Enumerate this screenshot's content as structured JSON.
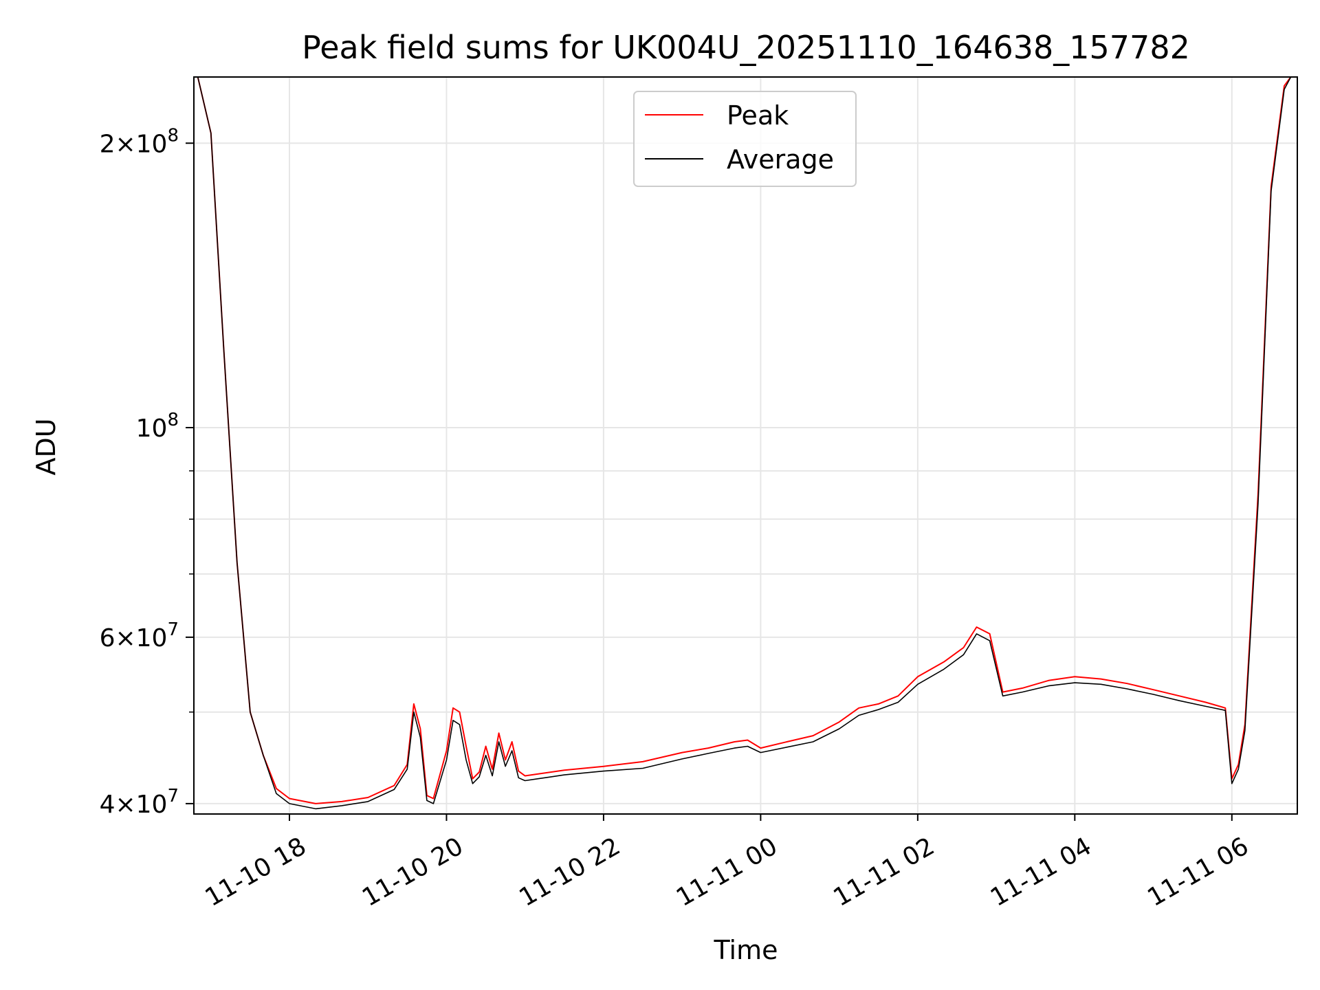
{
  "chart_data": {
    "type": "line",
    "title": "Peak field sums for UK004U_20251110_164638_157782",
    "xlabel": "Time",
    "ylabel": "ADU",
    "x_range": [
      "2025-11-10 16:47",
      "2025-11-11 06:50"
    ],
    "y_scale": "log",
    "ylim": [
      39000000,
      235000000
    ],
    "grid": true,
    "legend_position": "upper center",
    "x_ticks": [
      {
        "value": "2025-11-10 18:00",
        "label": "11-10 18"
      },
      {
        "value": "2025-11-10 20:00",
        "label": "11-10 20"
      },
      {
        "value": "2025-11-10 22:00",
        "label": "11-10 22"
      },
      {
        "value": "2025-11-11 00:00",
        "label": "11-11 00"
      },
      {
        "value": "2025-11-11 02:00",
        "label": "11-11 02"
      },
      {
        "value": "2025-11-11 04:00",
        "label": "11-11 04"
      },
      {
        "value": "2025-11-11 06:00",
        "label": "11-11 06"
      }
    ],
    "y_ticks": [
      {
        "value": 40000000,
        "base": "4",
        "exp": "7"
      },
      {
        "value": 60000000,
        "base": "6",
        "exp": "7"
      },
      {
        "value": 100000000,
        "base": "",
        "exp": "8"
      },
      {
        "value": 200000000,
        "base": "2",
        "exp": "8"
      }
    ],
    "y_minor_ticks": [
      50000000,
      70000000,
      80000000,
      90000000
    ],
    "series": [
      {
        "name": "Peak",
        "color": "#ff0000",
        "x": [
          "2025-11-10 16:50",
          "2025-11-10 17:00",
          "2025-11-10 17:10",
          "2025-11-10 17:20",
          "2025-11-10 17:30",
          "2025-11-10 17:40",
          "2025-11-10 17:50",
          "2025-11-10 18:00",
          "2025-11-10 18:20",
          "2025-11-10 18:40",
          "2025-11-10 19:00",
          "2025-11-10 19:20",
          "2025-11-10 19:30",
          "2025-11-10 19:35",
          "2025-11-10 19:40",
          "2025-11-10 19:45",
          "2025-11-10 19:50",
          "2025-11-10 20:00",
          "2025-11-10 20:05",
          "2025-11-10 20:10",
          "2025-11-10 20:15",
          "2025-11-10 20:20",
          "2025-11-10 20:25",
          "2025-11-10 20:30",
          "2025-11-10 20:35",
          "2025-11-10 20:40",
          "2025-11-10 20:45",
          "2025-11-10 20:50",
          "2025-11-10 20:55",
          "2025-11-10 21:00",
          "2025-11-10 21:10",
          "2025-11-10 21:20",
          "2025-11-10 21:30",
          "2025-11-10 22:00",
          "2025-11-10 22:30",
          "2025-11-10 23:00",
          "2025-11-10 23:20",
          "2025-11-10 23:40",
          "2025-11-10 23:50",
          "2025-11-11 00:00",
          "2025-11-11 00:20",
          "2025-11-11 00:40",
          "2025-11-11 01:00",
          "2025-11-11 01:15",
          "2025-11-11 01:30",
          "2025-11-11 01:45",
          "2025-11-11 02:00",
          "2025-11-11 02:20",
          "2025-11-11 02:35",
          "2025-11-11 02:45",
          "2025-11-11 02:55",
          "2025-11-11 03:05",
          "2025-11-11 03:20",
          "2025-11-11 03:40",
          "2025-11-11 04:00",
          "2025-11-11 04:20",
          "2025-11-11 04:40",
          "2025-11-11 05:00",
          "2025-11-11 05:20",
          "2025-11-11 05:40",
          "2025-11-11 05:55",
          "2025-11-11 06:00",
          "2025-11-11 06:05",
          "2025-11-11 06:10",
          "2025-11-11 06:20",
          "2025-11-11 06:30",
          "2025-11-11 06:40",
          "2025-11-11 06:45",
          "2025-11-11 06:50"
        ],
        "y": [
          240000000,
          205000000,
          120000000,
          72000000,
          50000000,
          45000000,
          41500000,
          40500000,
          40000000,
          40200000,
          40600000,
          41800000,
          44000000,
          51000000,
          48000000,
          40800000,
          40500000,
          45500000,
          50500000,
          50000000,
          46000000,
          42500000,
          43200000,
          46000000,
          43500000,
          47500000,
          44500000,
          46500000,
          43300000,
          42800000,
          43000000,
          43200000,
          43400000,
          43800000,
          44300000,
          45300000,
          45800000,
          46500000,
          46700000,
          45800000,
          46500000,
          47200000,
          48800000,
          50500000,
          51000000,
          52000000,
          54500000,
          56500000,
          58500000,
          61500000,
          60500000,
          52500000,
          53000000,
          54000000,
          54500000,
          54200000,
          53600000,
          52800000,
          52000000,
          51200000,
          50500000,
          42500000,
          44000000,
          48500000,
          85000000,
          180000000,
          230000000,
          238000000,
          240000000
        ]
      },
      {
        "name": "Average",
        "color": "#000000",
        "x": [
          "2025-11-10 16:50",
          "2025-11-10 17:00",
          "2025-11-10 17:10",
          "2025-11-10 17:20",
          "2025-11-10 17:30",
          "2025-11-10 17:40",
          "2025-11-10 17:50",
          "2025-11-10 18:00",
          "2025-11-10 18:20",
          "2025-11-10 18:40",
          "2025-11-10 19:00",
          "2025-11-10 19:20",
          "2025-11-10 19:30",
          "2025-11-10 19:35",
          "2025-11-10 19:40",
          "2025-11-10 19:45",
          "2025-11-10 19:50",
          "2025-11-10 20:00",
          "2025-11-10 20:05",
          "2025-11-10 20:10",
          "2025-11-10 20:15",
          "2025-11-10 20:20",
          "2025-11-10 20:25",
          "2025-11-10 20:30",
          "2025-11-10 20:35",
          "2025-11-10 20:40",
          "2025-11-10 20:45",
          "2025-11-10 20:50",
          "2025-11-10 20:55",
          "2025-11-10 21:00",
          "2025-11-10 21:10",
          "2025-11-10 21:20",
          "2025-11-10 21:30",
          "2025-11-10 22:00",
          "2025-11-10 22:30",
          "2025-11-10 23:00",
          "2025-11-10 23:20",
          "2025-11-10 23:40",
          "2025-11-10 23:50",
          "2025-11-11 00:00",
          "2025-11-11 00:20",
          "2025-11-11 00:40",
          "2025-11-11 01:00",
          "2025-11-11 01:15",
          "2025-11-11 01:30",
          "2025-11-11 01:45",
          "2025-11-11 02:00",
          "2025-11-11 02:20",
          "2025-11-11 02:35",
          "2025-11-11 02:45",
          "2025-11-11 02:55",
          "2025-11-11 03:05",
          "2025-11-11 03:20",
          "2025-11-11 03:40",
          "2025-11-11 04:00",
          "2025-11-11 04:20",
          "2025-11-11 04:40",
          "2025-11-11 05:00",
          "2025-11-11 05:20",
          "2025-11-11 05:40",
          "2025-11-11 05:55",
          "2025-11-11 06:00",
          "2025-11-11 06:05",
          "2025-11-11 06:10",
          "2025-11-11 06:20",
          "2025-11-11 06:30",
          "2025-11-11 06:40",
          "2025-11-11 06:45",
          "2025-11-11 06:50"
        ],
        "y": [
          240000000,
          205000000,
          120000000,
          72000000,
          50000000,
          45000000,
          41000000,
          40000000,
          39500000,
          39800000,
          40200000,
          41400000,
          43500000,
          50000000,
          47000000,
          40300000,
          40000000,
          44500000,
          49000000,
          48500000,
          44500000,
          42000000,
          42700000,
          45000000,
          42800000,
          46500000,
          43800000,
          45500000,
          42600000,
          42300000,
          42500000,
          42700000,
          42900000,
          43300000,
          43600000,
          44600000,
          45200000,
          45800000,
          46000000,
          45300000,
          45900000,
          46500000,
          48000000,
          49600000,
          50300000,
          51200000,
          53500000,
          55500000,
          57500000,
          60500000,
          59500000,
          52000000,
          52500000,
          53300000,
          53700000,
          53500000,
          52900000,
          52200000,
          51400000,
          50700000,
          50200000,
          42000000,
          43500000,
          47800000,
          83000000,
          178000000,
          228000000,
          237000000,
          240000000
        ]
      }
    ]
  }
}
